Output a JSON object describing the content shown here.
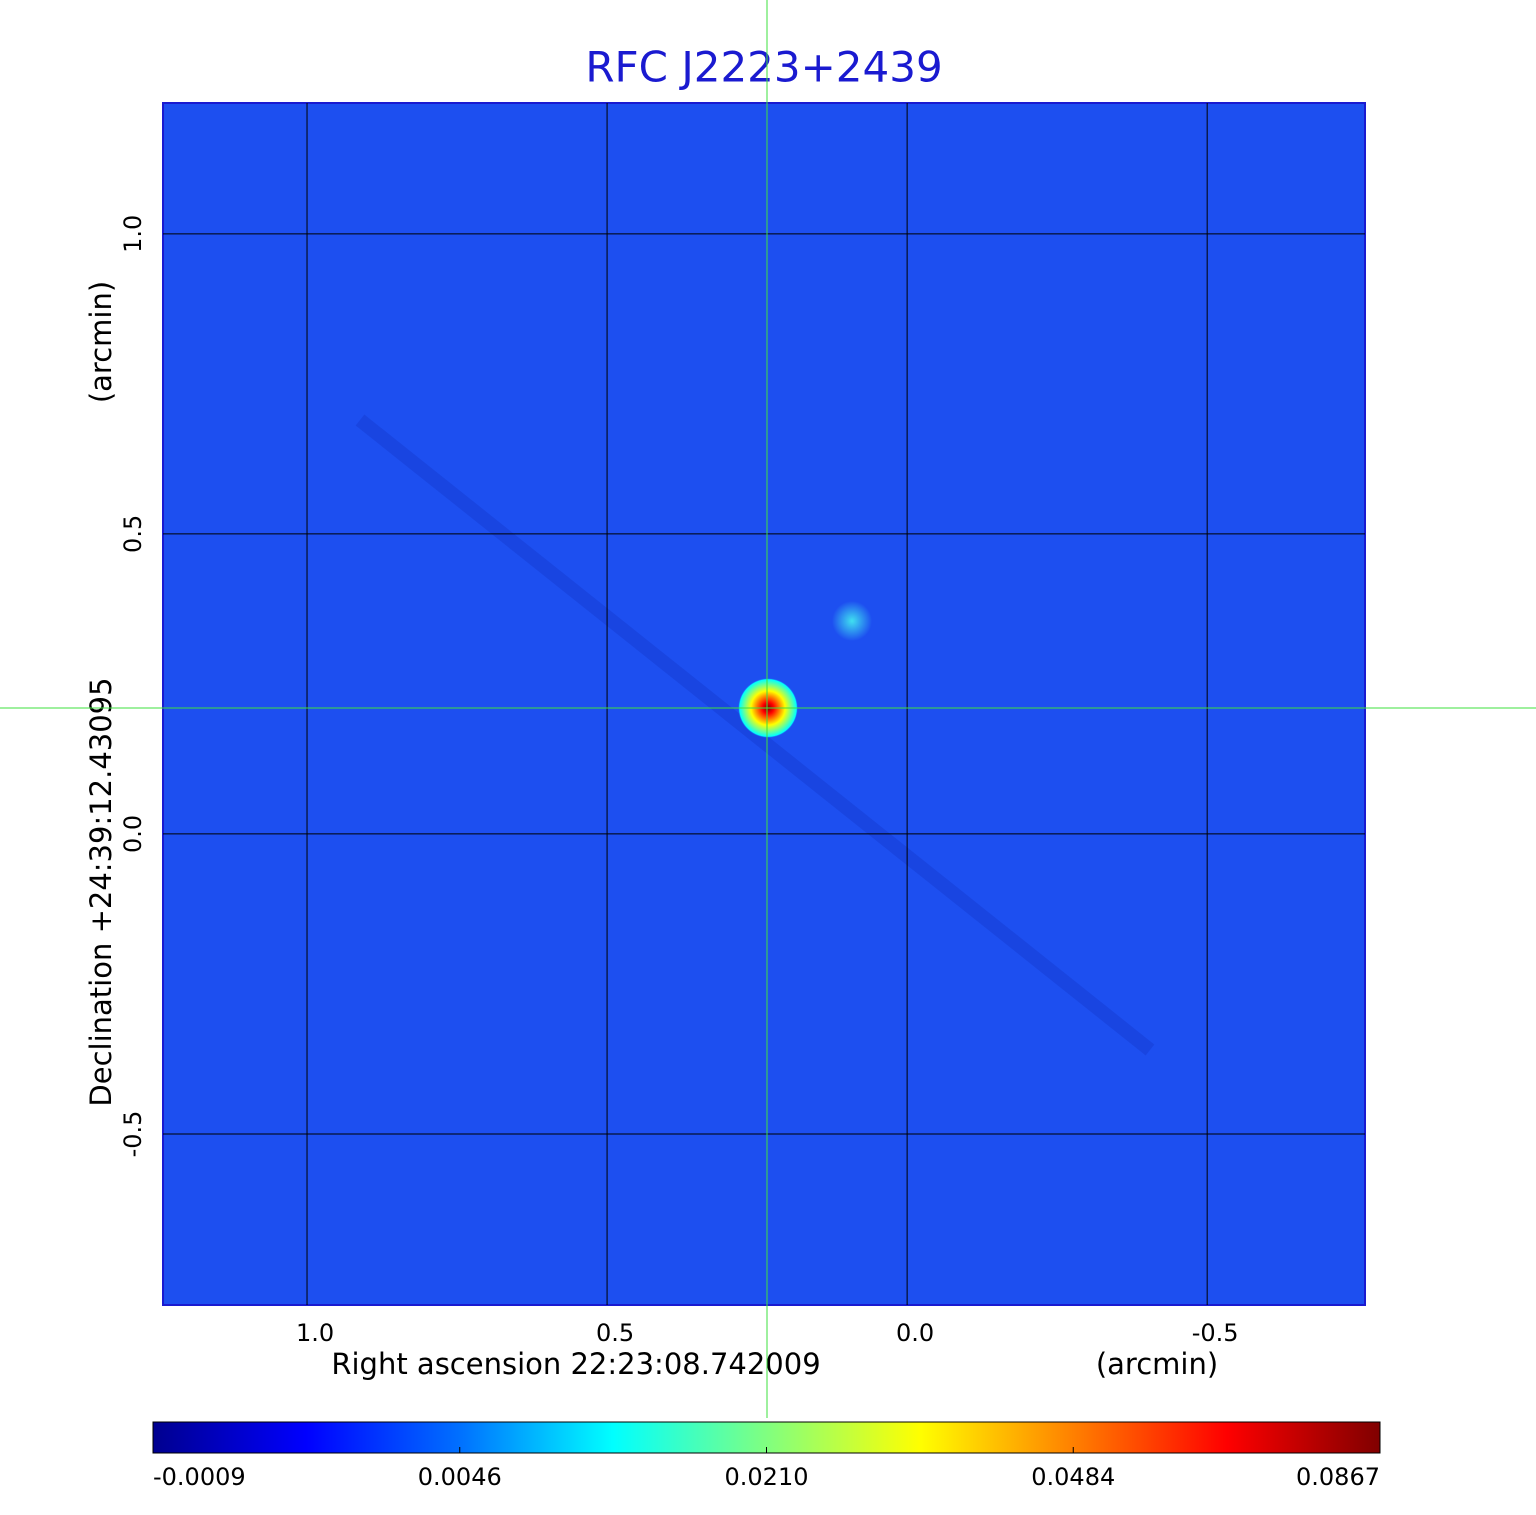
{
  "chart_data": {
    "type": "image",
    "title": "RFC J2223+2439",
    "xlabel": "Right ascension  22:23:08.742009",
    "xunit": "(arcmin)",
    "ylabel": "Declination  +24:39:12.43095",
    "yunit": "(arcmin)",
    "xlim": [
      1.24,
      -0.763
    ],
    "xticks": [
      {
        "value": 1,
        "label": "1.0"
      },
      0.5,
      {
        "value": 0,
        "label": "0.0"
      },
      -0.5
    ],
    "ylim": [
      -0.785,
      1.218
    ],
    "yticks": [
      {
        "value": 1,
        "label": "1.0"
      },
      0.5,
      {
        "value": 0,
        "label": "0.0"
      },
      -0.5
    ],
    "grid": true,
    "background": "#1d4ff0",
    "colormap": [
      "#00008f",
      "#0000ff",
      "#0070ff",
      "#00ffff",
      "#80ff80",
      "#ffff00",
      "#ff8000",
      "#ff0000",
      "#800000"
    ],
    "colorbar_ticks": [
      -0.0009,
      0.0046,
      {
        "value": 0.021,
        "label": "0.0210"
      },
      0.0484,
      0.0867
    ]
  }
}
